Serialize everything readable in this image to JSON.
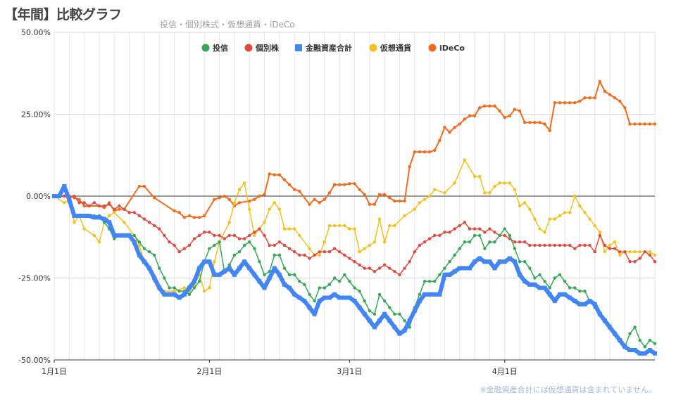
{
  "chart_data": {
    "type": "line",
    "title": "【年間】比較グラフ",
    "subtitle": "投信・個別株式・仮想通貨・iDeCo",
    "footnote": "※金融資産合計には仮想通貨は含まれていません。",
    "y_ticks": [
      "50.00%",
      "25.00%",
      "0.00%",
      "-25.00%",
      "-50.00%"
    ],
    "ylim": [
      -50,
      50
    ],
    "x_range_days": [
      0,
      120
    ],
    "x_ticks": [
      {
        "label": "1月1日",
        "day": 0
      },
      {
        "label": "2月1日",
        "day": 31
      },
      {
        "label": "3月1日",
        "day": 59
      },
      {
        "label": "4月1日",
        "day": 90
      }
    ],
    "legend_position": "top-center",
    "series": [
      {
        "name": "iDeCo",
        "color": "#f26b1d",
        "width": 2,
        "x": [
          0,
          1,
          2,
          3,
          4,
          5,
          6,
          7,
          9,
          10,
          11,
          12,
          13,
          14,
          17,
          18,
          20,
          24,
          25,
          26,
          27,
          28,
          29,
          30,
          32,
          33,
          34,
          35,
          36,
          37,
          39,
          40,
          41,
          42,
          43,
          44,
          45,
          46,
          47,
          48,
          49,
          51,
          52,
          53,
          54,
          55,
          56,
          57,
          58,
          59,
          60,
          61,
          62,
          63,
          64,
          65,
          66,
          67,
          68,
          69,
          70,
          71,
          72,
          73,
          74,
          75,
          76,
          77,
          78,
          79,
          80,
          81,
          82,
          83,
          84,
          85,
          86,
          87,
          88,
          89,
          90,
          91,
          92,
          93,
          94,
          95,
          96,
          97,
          98,
          99,
          100,
          101,
          102,
          103,
          104,
          105,
          106,
          107,
          108,
          109,
          110,
          111,
          112,
          113,
          114,
          115,
          116,
          117,
          118,
          119,
          120
        ],
        "y": [
          0,
          0,
          0,
          0,
          -0.5,
          -1,
          -3,
          -3,
          -3,
          -3.5,
          -2,
          -4.5,
          -4,
          -4,
          3,
          3,
          -0.5,
          -4.5,
          -5,
          -6.5,
          -6,
          -6.5,
          -6.5,
          -6,
          -1,
          -0.5,
          0,
          -1,
          -3,
          -2,
          -1.5,
          -1,
          0,
          0.5,
          6.8,
          6.5,
          6.5,
          5,
          3.5,
          2,
          1.5,
          -2.5,
          -1,
          -2,
          -1,
          1,
          3.5,
          3.5,
          3.5,
          3.8,
          3.8,
          2,
          0.5,
          -2.5,
          -2.5,
          0.5,
          0.5,
          -0.5,
          -1.5,
          -1.5,
          -1.5,
          9,
          13.5,
          13.5,
          13.5,
          13.5,
          14,
          17,
          21,
          19.5,
          21,
          22,
          23.5,
          24.5,
          24.5,
          27,
          27.5,
          27.5,
          27.5,
          26,
          24,
          24.5,
          26.5,
          26,
          22.5,
          22.5,
          22.5,
          22.5,
          22,
          20,
          28.5,
          28.5,
          28.5,
          28.5,
          28.5,
          29,
          30,
          30,
          30,
          35,
          32,
          31,
          30,
          29,
          27,
          22,
          22,
          22,
          22,
          22,
          22
        ]
      },
      {
        "name": "仮想通貨",
        "color": "#f5c118",
        "width": 1.5,
        "x": [
          0,
          2,
          3,
          4,
          5,
          6,
          8,
          9,
          10,
          11,
          12,
          14,
          16,
          17,
          18,
          20,
          22,
          24,
          26,
          27,
          28,
          29,
          30,
          31,
          32,
          33,
          35,
          36,
          37,
          38,
          39,
          40,
          41,
          42,
          43,
          44,
          45,
          46,
          47,
          48,
          49,
          51,
          52,
          53,
          54,
          55,
          56,
          57,
          58,
          59,
          60,
          61,
          62,
          63,
          64,
          65,
          66,
          67,
          68,
          70,
          72,
          73,
          74,
          75,
          76,
          78,
          80,
          82,
          84,
          85,
          86,
          87,
          88,
          89,
          90,
          91,
          92,
          93,
          94,
          95,
          96,
          97,
          98,
          99,
          100,
          101,
          102,
          103,
          104,
          105,
          106,
          107,
          108,
          109,
          110,
          111,
          112,
          113,
          114,
          115,
          116,
          117,
          118,
          119,
          120
        ],
        "y": [
          0,
          -2,
          -1,
          -8,
          -6,
          -10,
          -12,
          -14,
          -8,
          -6,
          -5,
          -8,
          -12,
          -15,
          -20,
          -26,
          -29,
          -29,
          -28,
          -29,
          -27,
          -24,
          -29,
          -28,
          -20,
          -14,
          -8,
          -2,
          2,
          4,
          -4,
          -12,
          -10,
          -8,
          -4,
          -2,
          -4,
          -10,
          -10,
          -10,
          -12,
          -16,
          -18,
          -18,
          -14,
          -9,
          -9,
          -9,
          -9,
          -10,
          -10,
          -17,
          -16,
          -15,
          -14,
          -7,
          -14,
          -9,
          -9,
          -6,
          -4,
          -2,
          -1,
          0,
          2,
          1,
          4,
          11,
          6,
          6,
          1,
          1,
          3,
          4,
          4,
          4,
          2,
          -3,
          -2,
          -4,
          -7,
          -10,
          -11,
          -7,
          -7,
          -6,
          -5,
          -5,
          0,
          -3,
          -5,
          -7,
          -9,
          -11,
          -17,
          -15,
          -14,
          -18,
          -17,
          -17,
          -17,
          -17,
          -17,
          -17,
          -18
        ]
      },
      {
        "name": "個別株",
        "color": "#e04a3c",
        "width": 1.5,
        "x": [
          0,
          1,
          2,
          3,
          4,
          5,
          6,
          7,
          8,
          9,
          10,
          11,
          12,
          13,
          14,
          15,
          16,
          17,
          18,
          19,
          20,
          21,
          22,
          23,
          24,
          25,
          26,
          27,
          28,
          29,
          30,
          31,
          32,
          33,
          34,
          35,
          36,
          37,
          38,
          39,
          40,
          41,
          42,
          43,
          44,
          45,
          46,
          47,
          48,
          49,
          50,
          51,
          52,
          53,
          54,
          55,
          56,
          57,
          58,
          59,
          60,
          61,
          62,
          63,
          64,
          65,
          66,
          67,
          68,
          69,
          70,
          71,
          72,
          73,
          74,
          75,
          76,
          77,
          78,
          79,
          80,
          81,
          82,
          83,
          84,
          85,
          86,
          87,
          88,
          89,
          90,
          91,
          92,
          93,
          94,
          95,
          96,
          97,
          98,
          99,
          100,
          101,
          102,
          103,
          104,
          105,
          106,
          107,
          108,
          109,
          110,
          111,
          112,
          113,
          114,
          115,
          116,
          117,
          118,
          119,
          120
        ],
        "y": [
          0,
          0,
          0,
          0,
          0,
          -2,
          -2,
          -3,
          -2,
          -3,
          -3,
          -2.5,
          -4,
          -3,
          -4,
          -5,
          -5,
          -6,
          -7,
          -8,
          -9,
          -10,
          -12,
          -14,
          -15,
          -17,
          -16,
          -15,
          -13,
          -12,
          -11,
          -11,
          -12,
          -12,
          -13,
          -12,
          -12,
          -13,
          -13,
          -12,
          -11,
          -10,
          -12,
          -15,
          -15,
          -14,
          -15,
          -16,
          -17,
          -18,
          -18,
          -19,
          -18,
          -17,
          -17,
          -17,
          -16,
          -17,
          -18,
          -19,
          -20,
          -21,
          -22,
          -22,
          -23,
          -22,
          -21,
          -22,
          -23,
          -24,
          -22,
          -20,
          -17,
          -15,
          -14,
          -13,
          -12,
          -12,
          -11,
          -11,
          -10,
          -9,
          -8,
          -10,
          -10,
          -10,
          -11,
          -10,
          -11,
          -12,
          -12,
          -13,
          -14,
          -14,
          -14,
          -15,
          -15,
          -15,
          -15,
          -15,
          -15,
          -15,
          -15,
          -15,
          -16,
          -15,
          -15,
          -15,
          -17,
          -12,
          -15,
          -16,
          -16,
          -17,
          -17,
          -20,
          -20,
          -19,
          -17,
          -18,
          -20
        ]
      },
      {
        "name": "投信",
        "color": "#34a853",
        "width": 1.5,
        "x": [
          0,
          1,
          2,
          3,
          4,
          5,
          6,
          7,
          8,
          9,
          10,
          11,
          12,
          13,
          14,
          15,
          16,
          17,
          18,
          19,
          20,
          21,
          22,
          23,
          24,
          25,
          26,
          27,
          28,
          29,
          30,
          31,
          32,
          33,
          34,
          35,
          36,
          37,
          38,
          39,
          40,
          41,
          42,
          43,
          44,
          45,
          46,
          47,
          48,
          49,
          50,
          51,
          52,
          53,
          54,
          55,
          56,
          57,
          58,
          59,
          60,
          61,
          62,
          63,
          64,
          65,
          66,
          67,
          68,
          69,
          70,
          71,
          72,
          73,
          74,
          75,
          76,
          77,
          78,
          79,
          80,
          81,
          82,
          83,
          84,
          85,
          86,
          87,
          88,
          89,
          90,
          91,
          92,
          93,
          94,
          95,
          96,
          97,
          98,
          99,
          100,
          101,
          102,
          103,
          104,
          105,
          106,
          107,
          108,
          109,
          110,
          111,
          112,
          113,
          114,
          115,
          116,
          117,
          118,
          119,
          120
        ],
        "y": [
          0,
          0,
          2,
          -2,
          -6,
          -6,
          -6,
          -6,
          -6,
          -6,
          -8,
          -10,
          -13,
          -12,
          -12,
          -12,
          -12,
          -14,
          -16,
          -17,
          -18,
          -22,
          -25,
          -28,
          -28,
          -29,
          -29,
          -30,
          -28,
          -26,
          -20,
          -16,
          -15,
          -14,
          -23,
          -21,
          -18,
          -17,
          -15,
          -14,
          -16,
          -20,
          -24,
          -23,
          -18,
          -18,
          -22,
          -24,
          -24,
          -26,
          -27,
          -30,
          -32,
          -28,
          -28,
          -27,
          -25,
          -26,
          -24,
          -26,
          -28,
          -29,
          -32,
          -35,
          -36,
          -30,
          -32,
          -34,
          -36,
          -36,
          -38,
          -40,
          -34,
          -30,
          -26,
          -26,
          -26,
          -24,
          -22,
          -20,
          -18,
          -16,
          -14,
          -14,
          -12,
          -12,
          -16,
          -14,
          -14,
          -12,
          -10,
          -12,
          -16,
          -20,
          -20,
          -22,
          -25,
          -24,
          -26,
          -28,
          -25,
          -24,
          -26,
          -28,
          -28,
          -29,
          -29,
          -32,
          -34,
          -36,
          -38,
          -40,
          -42,
          -44,
          -46,
          -42,
          -40,
          -44,
          -46,
          -44,
          -45
        ]
      },
      {
        "name": "金融資産合計",
        "color": "#4285f4",
        "width": 6,
        "x": [
          0,
          1,
          2,
          3,
          4,
          5,
          6,
          7,
          8,
          9,
          10,
          11,
          12,
          13,
          14,
          15,
          16,
          17,
          18,
          19,
          20,
          21,
          22,
          23,
          24,
          25,
          26,
          27,
          28,
          29,
          30,
          31,
          32,
          33,
          34,
          35,
          36,
          37,
          38,
          39,
          40,
          41,
          42,
          43,
          44,
          45,
          46,
          47,
          48,
          49,
          50,
          51,
          52,
          53,
          54,
          55,
          56,
          57,
          58,
          59,
          60,
          61,
          62,
          63,
          64,
          65,
          66,
          67,
          68,
          69,
          70,
          71,
          72,
          73,
          74,
          75,
          76,
          77,
          78,
          79,
          80,
          81,
          82,
          83,
          84,
          85,
          86,
          87,
          88,
          89,
          90,
          91,
          92,
          93,
          94,
          95,
          96,
          97,
          98,
          99,
          100,
          101,
          102,
          103,
          104,
          105,
          106,
          107,
          108,
          109,
          110,
          111,
          112,
          113,
          114,
          115,
          116,
          117,
          118,
          119,
          120
        ],
        "y": [
          0,
          0,
          3,
          -1,
          -6,
          -6,
          -6,
          -6,
          -6.5,
          -6.5,
          -7,
          -8,
          -12,
          -12,
          -12,
          -12,
          -14,
          -18,
          -20,
          -22,
          -25,
          -28,
          -30,
          -30,
          -30,
          -31,
          -30,
          -28,
          -26,
          -22,
          -20,
          -20,
          -24,
          -24,
          -23,
          -22,
          -24,
          -22,
          -20,
          -22,
          -24,
          -26,
          -28,
          -25,
          -22,
          -24,
          -27,
          -28,
          -30,
          -31,
          -32,
          -34,
          -36,
          -32,
          -31,
          -31,
          -30,
          -31,
          -31,
          -31,
          -32,
          -34,
          -36,
          -38,
          -40,
          -38,
          -36,
          -38,
          -40,
          -42,
          -41,
          -38,
          -35,
          -32,
          -30,
          -30,
          -30,
          -30,
          -24,
          -24,
          -23,
          -22,
          -22,
          -22,
          -20,
          -19,
          -20,
          -20,
          -22,
          -20,
          -20,
          -19,
          -20,
          -24,
          -26,
          -27,
          -27,
          -28,
          -28,
          -30,
          -32,
          -30,
          -30,
          -31,
          -32,
          -33,
          -33,
          -32,
          -33,
          -36,
          -38,
          -40,
          -42,
          -44,
          -46,
          -47,
          -47,
          -48,
          -48,
          -47,
          -48
        ]
      }
    ]
  }
}
